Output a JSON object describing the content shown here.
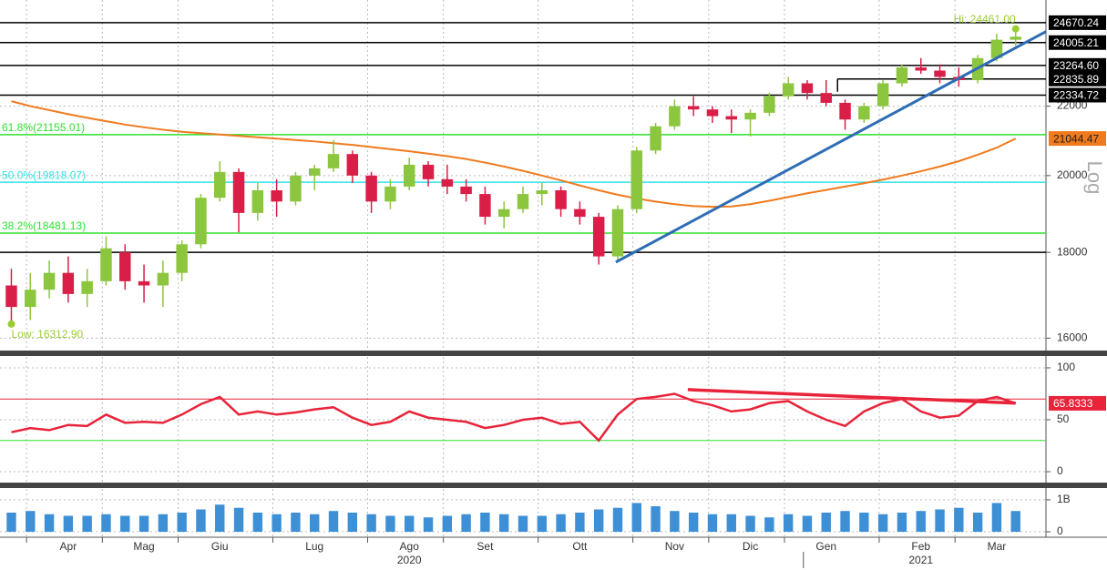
{
  "chart_data": [
    {
      "type": "candlestick",
      "log": true,
      "scale_label": "Log",
      "ylim": [
        15730,
        25450
      ],
      "xlim": [
        -0.6,
        54.6
      ],
      "yticks": [
        16000,
        18000,
        20000,
        22000
      ],
      "grid": true,
      "up_color": "#8cc63e",
      "down_color": "#d91e48",
      "ohlc": [
        [
          17200,
          17600,
          16313,
          16700
        ],
        [
          16700,
          17500,
          16400,
          17100
        ],
        [
          17100,
          17800,
          16900,
          17500
        ],
        [
          17500,
          17900,
          16800,
          17000
        ],
        [
          17000,
          17600,
          16700,
          17300
        ],
        [
          17300,
          18400,
          17200,
          18100
        ],
        [
          18000,
          18200,
          17100,
          17300
        ],
        [
          17300,
          17700,
          16800,
          17200
        ],
        [
          17200,
          17800,
          16700,
          17500
        ],
        [
          17500,
          18300,
          17300,
          18200
        ],
        [
          18200,
          19500,
          18100,
          19400
        ],
        [
          19400,
          20400,
          19300,
          20100
        ],
        [
          20100,
          20200,
          18500,
          19000
        ],
        [
          19000,
          19800,
          18800,
          19600
        ],
        [
          19600,
          19900,
          18900,
          19300
        ],
        [
          19300,
          20100,
          19200,
          20000
        ],
        [
          20000,
          20300,
          19600,
          20200
        ],
        [
          20200,
          21000,
          20100,
          20600
        ],
        [
          20600,
          20700,
          19800,
          20000
        ],
        [
          20000,
          20100,
          19000,
          19300
        ],
        [
          19300,
          19900,
          19100,
          19700
        ],
        [
          19700,
          20500,
          19600,
          20300
        ],
        [
          20300,
          20400,
          19700,
          19900
        ],
        [
          19900,
          20300,
          19500,
          19700
        ],
        [
          19700,
          19900,
          19300,
          19500
        ],
        [
          19500,
          19700,
          18700,
          18900
        ],
        [
          18900,
          19300,
          18600,
          19100
        ],
        [
          19100,
          19700,
          19000,
          19500
        ],
        [
          19500,
          19800,
          19200,
          19600
        ],
        [
          19600,
          19700,
          18900,
          19100
        ],
        [
          19100,
          19300,
          18700,
          18900
        ],
        [
          18900,
          19000,
          17700,
          17900
        ],
        [
          17900,
          19200,
          17800,
          19100
        ],
        [
          19100,
          20800,
          19000,
          20700
        ],
        [
          20700,
          21500,
          20600,
          21400
        ],
        [
          21400,
          22200,
          21300,
          22000
        ],
        [
          22000,
          22300,
          21700,
          21900
        ],
        [
          21900,
          22000,
          21500,
          21700
        ],
        [
          21700,
          21900,
          21200,
          21600
        ],
        [
          21600,
          21900,
          21100,
          21800
        ],
        [
          21800,
          22400,
          21700,
          22300
        ],
        [
          22300,
          22900,
          22200,
          22700
        ],
        [
          22700,
          22800,
          22200,
          22400
        ],
        [
          22400,
          22800,
          22000,
          22100
        ],
        [
          22100,
          22200,
          21300,
          21600
        ],
        [
          21600,
          22100,
          21500,
          22000
        ],
        [
          22000,
          22800,
          21900,
          22700
        ],
        [
          22700,
          23300,
          22600,
          23200
        ],
        [
          23200,
          23500,
          23000,
          23100
        ],
        [
          23100,
          23300,
          22700,
          22900
        ],
        [
          22900,
          23200,
          22600,
          22800
        ],
        [
          22800,
          23600,
          22700,
          23500
        ],
        [
          23500,
          24300,
          23400,
          24100
        ],
        [
          24100,
          24461,
          23900,
          24200
        ]
      ],
      "moving_average": {
        "color": "#f07a1e",
        "values": [
          22150,
          22000,
          21880,
          21760,
          21650,
          21550,
          21450,
          21370,
          21300,
          21240,
          21200,
          21160,
          21120,
          21080,
          21040,
          21000,
          20960,
          20910,
          20860,
          20800,
          20740,
          20680,
          20610,
          20540,
          20460,
          20360,
          20250,
          20130,
          20000,
          19870,
          19730,
          19600,
          19480,
          19380,
          19300,
          19230,
          19180,
          19160,
          19170,
          19230,
          19320,
          19420,
          19520,
          19610,
          19700,
          19790,
          19890,
          20000,
          20120,
          20250,
          20400,
          20580,
          20780,
          21044.47
        ]
      },
      "levels": [
        {
          "value": 24670.24,
          "label": "24670.24"
        },
        {
          "value": 24005.21,
          "label": "24005.21"
        },
        {
          "value": 23264.6,
          "label": "23264.60"
        },
        {
          "value": 22835.89,
          "label": "22835.89",
          "from": 43.6
        },
        {
          "value": 22334.72,
          "label": "22334.72"
        },
        {
          "value": 18000
        }
      ],
      "fibonacci": [
        {
          "label": "61.8%(21155.01)",
          "value": 21155.01,
          "color": "#2ee02e"
        },
        {
          "label": "50.0%(19818.07)",
          "value": 19818.07,
          "color": "#33e0e8"
        },
        {
          "label": "38.2%(18481.13)",
          "value": 18481.13,
          "color": "#2ee02e"
        }
      ],
      "trend_line": {
        "color": "#2e6db4",
        "points": [
          [
            31.9,
            17760
          ],
          [
            54.6,
            24370
          ]
        ]
      },
      "annotations": [
        {
          "label": "Hi: 24461.00",
          "value": 24461,
          "index": 53
        },
        {
          "label": "Low: 16312.90",
          "value": 16312.9,
          "index": 0
        }
      ],
      "annotation_color": "#9acd32"
    },
    {
      "type": "line",
      "ylim": [
        -10.5,
        110.5
      ],
      "yticks": [
        0,
        50,
        100
      ],
      "grid": true,
      "series": [
        {
          "color": "#e8233a",
          "values": [
            38,
            42,
            40,
            45,
            44,
            55,
            47,
            48,
            47,
            55,
            65,
            72,
            55,
            58,
            55,
            57,
            60,
            62,
            52,
            45,
            48,
            58,
            52,
            50,
            48,
            42,
            45,
            50,
            52,
            46,
            48,
            30,
            55,
            70,
            72,
            75,
            68,
            64,
            58,
            60,
            66,
            68,
            58,
            50,
            44,
            58,
            66,
            70,
            58,
            52,
            54,
            68,
            72,
            65.8333
          ]
        }
      ],
      "bands": [
        {
          "value": 70,
          "color": "#e8233a"
        },
        {
          "value": 30,
          "color": "#2ee02e"
        }
      ],
      "trend_line": {
        "color": "#e8233a",
        "points": [
          [
            35.7,
            79
          ],
          [
            53,
            66
          ]
        ]
      }
    },
    {
      "type": "bar",
      "ylim": [
        -0.17,
        1.34
      ],
      "yticks": [
        {
          "value": 1,
          "label": "1B"
        },
        0
      ],
      "color": "#3d8fd6",
      "values": [
        0.6,
        0.65,
        0.55,
        0.5,
        0.5,
        0.55,
        0.5,
        0.5,
        0.55,
        0.6,
        0.7,
        0.85,
        0.75,
        0.6,
        0.55,
        0.6,
        0.55,
        0.65,
        0.6,
        0.55,
        0.5,
        0.5,
        0.45,
        0.5,
        0.55,
        0.6,
        0.55,
        0.5,
        0.5,
        0.55,
        0.6,
        0.7,
        0.75,
        0.9,
        0.8,
        0.65,
        0.6,
        0.55,
        0.55,
        0.5,
        0.45,
        0.55,
        0.5,
        0.6,
        0.65,
        0.6,
        0.55,
        0.6,
        0.65,
        0.7,
        0.75,
        0.6,
        0.9,
        0.65
      ],
      "categories": [
        null,
        null,
        null,
        "Apr",
        null,
        null,
        null,
        "Mag",
        null,
        null,
        null,
        "Giu",
        null,
        null,
        null,
        null,
        "Lug",
        null,
        null,
        null,
        null,
        "Ago",
        null,
        null,
        null,
        "Set",
        null,
        null,
        null,
        null,
        "Ott",
        null,
        null,
        null,
        null,
        "Nov",
        null,
        null,
        null,
        "Dic",
        null,
        null,
        null,
        "Gen",
        null,
        null,
        null,
        null,
        "Feb",
        null,
        null,
        null,
        "Mar",
        null
      ],
      "years": [
        "2020",
        "2021"
      ]
    }
  ]
}
